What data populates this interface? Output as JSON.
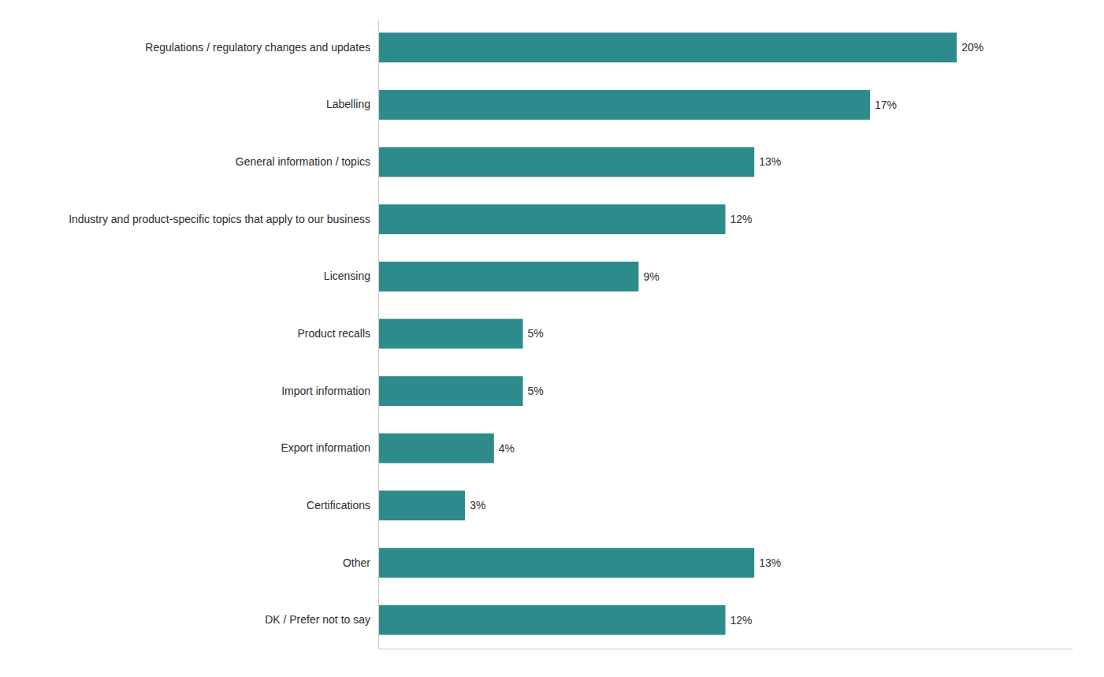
{
  "chart_data": {
    "type": "bar",
    "orientation": "horizontal",
    "categories": [
      "Regulations / regulatory changes and updates",
      "Labelling",
      "General information / topics",
      "Industry and product-specific topics that apply to our business",
      "Licensing",
      "Product recalls",
      "Import information",
      "Export information",
      "Certifications",
      "Other",
      "DK / Prefer not to say"
    ],
    "values": [
      20,
      17,
      13,
      12,
      9,
      5,
      5,
      4,
      3,
      13,
      12
    ],
    "value_labels": [
      "20%",
      "17%",
      "13%",
      "12%",
      "9%",
      "5%",
      "5%",
      "4%",
      "3%",
      "13%",
      "12%"
    ],
    "color": "#2e8b8b",
    "xlim": [
      0,
      24
    ],
    "data_labels": true,
    "tick_labels": "y",
    "grid": false
  }
}
